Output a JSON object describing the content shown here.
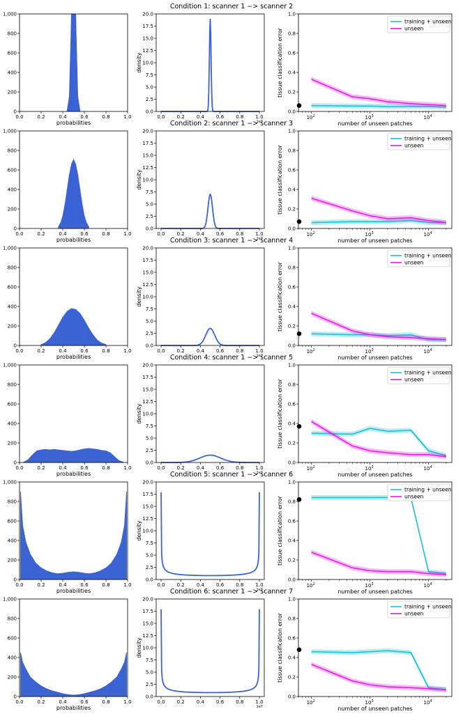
{
  "figure": {
    "common": {
      "hist_xlabel": "probabilities",
      "density_ylabel": "density",
      "density_exponent": "1e7",
      "error_xlabel": "number of unseen patches",
      "error_ylabel": "tissue classification error",
      "legend": [
        "training + unseen",
        "unseen"
      ],
      "colors": {
        "hist": "#3b63d4",
        "density": "#3b63d4",
        "training_unseen": "#17becf",
        "unseen": "#e619e6",
        "dot": "#000000"
      }
    }
  },
  "chart_data": [
    {
      "condition": 1,
      "title": "Condition 1: scanner 1 −> scanner 2",
      "histogram": {
        "type": "bar",
        "xlim": [
          0,
          1
        ],
        "ylim": [
          0,
          1000
        ],
        "xticks": [
          "0.0",
          "0.2",
          "0.4",
          "0.6",
          "0.8",
          "1.0"
        ],
        "yticks": [
          "0",
          "200",
          "400",
          "600",
          "800",
          "1,000"
        ],
        "x": [
          0.44,
          0.46,
          0.48,
          0.5,
          0.52,
          0.54,
          0.56
        ],
        "values": [
          10,
          150,
          1000,
          1000,
          1000,
          150,
          10
        ]
      },
      "density": {
        "type": "line",
        "xlim": [
          0,
          1
        ],
        "ylim": [
          0,
          20
        ],
        "xticks": [
          "0.0",
          "0.2",
          "0.4",
          "0.6",
          "0.8",
          "1.0"
        ],
        "yticks": [
          "0.0",
          "2.5",
          "5.0",
          "7.5",
          "10.0",
          "12.5",
          "15.0",
          "17.5",
          "20.0"
        ],
        "peak_x": 0.5,
        "peak_y": 19.0
      },
      "error": {
        "type": "line",
        "xscale": "log",
        "xlim": [
          60,
          25000
        ],
        "ylim": [
          0,
          1
        ],
        "yticks": [
          "0.0",
          "0.2",
          "0.4",
          "0.6",
          "0.8",
          "1.0"
        ],
        "xticks": [
          "10^2",
          "10^3",
          "10^4"
        ],
        "dot": {
          "x": 60,
          "y": 0.06
        },
        "series": [
          {
            "name": "training + unseen",
            "x": [
              100,
              500,
              1000,
              2000,
              5000,
              10000,
              20000
            ],
            "y": [
              0.06,
              0.055,
              0.055,
              0.05,
              0.05,
              0.05,
              0.045
            ]
          },
          {
            "name": "unseen",
            "x": [
              100,
              500,
              1000,
              2000,
              5000,
              10000,
              20000
            ],
            "y": [
              0.33,
              0.15,
              0.13,
              0.1,
              0.08,
              0.07,
              0.06
            ]
          }
        ]
      }
    },
    {
      "condition": 2,
      "title": "Condition 2: scanner 1 −> scanner 3",
      "histogram": {
        "type": "bar",
        "xlim": [
          0,
          1
        ],
        "ylim": [
          0,
          1000
        ],
        "xticks": [
          "0.0",
          "0.2",
          "0.4",
          "0.6",
          "0.8",
          "1.0"
        ],
        "yticks": [
          "0",
          "200",
          "400",
          "600",
          "800",
          "1,000"
        ],
        "x": [
          0.36,
          0.38,
          0.4,
          0.42,
          0.44,
          0.46,
          0.48,
          0.5,
          0.52,
          0.54,
          0.56,
          0.58,
          0.6,
          0.62,
          0.64
        ],
        "values": [
          20,
          60,
          130,
          250,
          400,
          550,
          660,
          710,
          660,
          550,
          400,
          250,
          130,
          60,
          20
        ]
      },
      "density": {
        "type": "line",
        "xlim": [
          0,
          1
        ],
        "ylim": [
          0,
          20
        ],
        "xticks": [
          "0.0",
          "0.2",
          "0.4",
          "0.6",
          "0.8",
          "1.0"
        ],
        "yticks": [
          "0.0",
          "2.5",
          "5.0",
          "7.5",
          "10.0",
          "12.5",
          "15.0",
          "17.5",
          "20.0"
        ],
        "peak_x": 0.5,
        "peak_y": 7.0
      },
      "error": {
        "type": "line",
        "xscale": "log",
        "xlim": [
          60,
          25000
        ],
        "ylim": [
          0,
          1
        ],
        "yticks": [
          "0.0",
          "0.2",
          "0.4",
          "0.6",
          "0.8",
          "1.0"
        ],
        "xticks": [
          "10^2",
          "10^3",
          "10^4"
        ],
        "dot": {
          "x": 60,
          "y": 0.07
        },
        "series": [
          {
            "name": "training + unseen",
            "x": [
              100,
              500,
              1000,
              2000,
              5000,
              10000,
              20000
            ],
            "y": [
              0.06,
              0.07,
              0.07,
              0.07,
              0.08,
              0.06,
              0.06
            ]
          },
          {
            "name": "unseen",
            "x": [
              100,
              500,
              1000,
              2000,
              5000,
              10000,
              20000
            ],
            "y": [
              0.31,
              0.18,
              0.13,
              0.1,
              0.11,
              0.08,
              0.06
            ]
          }
        ]
      }
    },
    {
      "condition": 3,
      "title": "Condition 3: scanner 1 −> scanner 4",
      "histogram": {
        "type": "bar",
        "xlim": [
          0,
          1
        ],
        "ylim": [
          0,
          1000
        ],
        "xticks": [
          "0.0",
          "0.2",
          "0.4",
          "0.6",
          "0.8",
          "1.0"
        ],
        "yticks": [
          "0",
          "200",
          "400",
          "600",
          "800",
          "1,000"
        ],
        "x": [
          0.2,
          0.24,
          0.28,
          0.32,
          0.36,
          0.4,
          0.44,
          0.48,
          0.52,
          0.56,
          0.6,
          0.64,
          0.68,
          0.72,
          0.76,
          0.8
        ],
        "values": [
          10,
          30,
          70,
          130,
          210,
          290,
          350,
          380,
          370,
          330,
          260,
          180,
          110,
          55,
          25,
          10
        ]
      },
      "density": {
        "type": "line",
        "xlim": [
          0,
          1
        ],
        "ylim": [
          0,
          20
        ],
        "xticks": [
          "0.0",
          "0.2",
          "0.4",
          "0.6",
          "0.8",
          "1.0"
        ],
        "yticks": [
          "0.0",
          "2.5",
          "5.0",
          "7.5",
          "10.0",
          "12.5",
          "15.0",
          "17.5",
          "20.0"
        ],
        "peak_x": 0.5,
        "peak_y": 3.5
      },
      "error": {
        "type": "line",
        "xscale": "log",
        "xlim": [
          60,
          25000
        ],
        "ylim": [
          0,
          1
        ],
        "yticks": [
          "0.0",
          "0.2",
          "0.4",
          "0.6",
          "0.8",
          "1.0"
        ],
        "xticks": [
          "10^2",
          "10^3",
          "10^4"
        ],
        "dot": {
          "x": 60,
          "y": 0.12
        },
        "series": [
          {
            "name": "training + unseen",
            "x": [
              100,
              500,
              1000,
              2000,
              5000,
              10000,
              20000
            ],
            "y": [
              0.12,
              0.11,
              0.11,
              0.1,
              0.11,
              0.06,
              0.06
            ]
          },
          {
            "name": "unseen",
            "x": [
              100,
              500,
              1000,
              2000,
              5000,
              10000,
              20000
            ],
            "y": [
              0.33,
              0.15,
              0.11,
              0.09,
              0.08,
              0.07,
              0.06
            ]
          }
        ]
      }
    },
    {
      "condition": 4,
      "title": "Condition 4: scanner 1 −> scanner 5",
      "histogram": {
        "type": "bar",
        "xlim": [
          0,
          1
        ],
        "ylim": [
          0,
          1000
        ],
        "xticks": [
          "0.0",
          "0.2",
          "0.4",
          "0.6",
          "0.8",
          "1.0"
        ],
        "yticks": [
          "0",
          "200",
          "400",
          "600",
          "800",
          "1,000"
        ],
        "x": [
          0.04,
          0.08,
          0.12,
          0.16,
          0.2,
          0.24,
          0.28,
          0.32,
          0.36,
          0.4,
          0.44,
          0.48,
          0.52,
          0.56,
          0.6,
          0.64,
          0.68,
          0.72,
          0.76,
          0.8,
          0.84,
          0.88,
          0.92,
          0.96
        ],
        "values": [
          5,
          30,
          80,
          120,
          130,
          135,
          130,
          135,
          130,
          125,
          120,
          115,
          120,
          130,
          140,
          145,
          140,
          135,
          125,
          120,
          100,
          60,
          20,
          5
        ]
      },
      "density": {
        "type": "line",
        "xlim": [
          0,
          1
        ],
        "ylim": [
          0,
          20
        ],
        "xticks": [
          "0.0",
          "0.2",
          "0.4",
          "0.6",
          "0.8",
          "1.0"
        ],
        "yticks": [
          "0.0",
          "2.5",
          "5.0",
          "7.5",
          "10.0",
          "12.5",
          "15.0",
          "17.5",
          "20.0"
        ],
        "peak_x": 0.5,
        "peak_y": 1.5
      },
      "error": {
        "type": "line",
        "xscale": "log",
        "xlim": [
          60,
          25000
        ],
        "ylim": [
          0,
          1
        ],
        "yticks": [
          "0.0",
          "0.2",
          "0.4",
          "0.6",
          "0.8",
          "1.0"
        ],
        "xticks": [
          "10^2",
          "10^3",
          "10^4"
        ],
        "dot": {
          "x": 60,
          "y": 0.37
        },
        "series": [
          {
            "name": "training + unseen",
            "x": [
              100,
              500,
              1000,
              2000,
              5000,
              10000,
              20000
            ],
            "y": [
              0.3,
              0.29,
              0.35,
              0.32,
              0.33,
              0.12,
              0.07
            ]
          },
          {
            "name": "unseen",
            "x": [
              100,
              500,
              1000,
              2000,
              5000,
              10000,
              20000
            ],
            "y": [
              0.42,
              0.17,
              0.12,
              0.1,
              0.08,
              0.08,
              0.06
            ]
          }
        ]
      }
    },
    {
      "condition": 5,
      "title": "Condition 5: scanner 1 −> scanner 6",
      "histogram": {
        "type": "bar",
        "xlim": [
          0,
          1
        ],
        "ylim": [
          0,
          1000
        ],
        "xticks": [
          "0.0",
          "0.2",
          "0.4",
          "0.6",
          "0.8",
          "1.0"
        ],
        "yticks": [
          "0",
          "200",
          "400",
          "600",
          "800",
          "1,000"
        ],
        "x": [
          0.01,
          0.03,
          0.06,
          0.1,
          0.15,
          0.2,
          0.25,
          0.3,
          0.35,
          0.4,
          0.45,
          0.5,
          0.55,
          0.6,
          0.65,
          0.7,
          0.75,
          0.8,
          0.85,
          0.9,
          0.94,
          0.97,
          0.99
        ],
        "values": [
          900,
          550,
          380,
          260,
          170,
          120,
          90,
          70,
          60,
          65,
          75,
          80,
          75,
          65,
          60,
          70,
          90,
          120,
          170,
          260,
          380,
          550,
          900
        ]
      },
      "density": {
        "type": "line",
        "xlim": [
          0,
          1
        ],
        "ylim": [
          0,
          20
        ],
        "xticks": [
          "0.0",
          "0.2",
          "0.4",
          "0.6",
          "0.8",
          "1.0"
        ],
        "yticks": [
          "0.0",
          "2.5",
          "5.0",
          "7.5",
          "10.0",
          "12.5",
          "15.0",
          "17.5",
          "20.0"
        ],
        "shape": "u",
        "min_y": 0.8
      },
      "error": {
        "type": "line",
        "xscale": "log",
        "xlim": [
          60,
          25000
        ],
        "ylim": [
          0,
          1
        ],
        "yticks": [
          "0.0",
          "0.2",
          "0.4",
          "0.6",
          "0.8",
          "1.0"
        ],
        "xticks": [
          "10^2",
          "10^3",
          "10^4"
        ],
        "dot": {
          "x": 60,
          "y": 0.82
        },
        "series": [
          {
            "name": "training + unseen",
            "x": [
              100,
              500,
              1000,
              2000,
              5000,
              10000,
              20000
            ],
            "y": [
              0.84,
              0.84,
              0.84,
              0.84,
              0.84,
              0.08,
              0.06
            ]
          },
          {
            "name": "unseen",
            "x": [
              100,
              500,
              1000,
              2000,
              5000,
              10000,
              20000
            ],
            "y": [
              0.28,
              0.12,
              0.09,
              0.08,
              0.08,
              0.06,
              0.05
            ]
          }
        ]
      }
    },
    {
      "condition": 6,
      "title": "Condition 6: scanner 1 −> scanner 7",
      "histogram": {
        "type": "bar",
        "xlim": [
          0,
          1
        ],
        "ylim": [
          0,
          1000
        ],
        "xticks": [
          "0.0",
          "0.2",
          "0.4",
          "0.6",
          "0.8",
          "1.0"
        ],
        "yticks": [
          "0",
          "200",
          "400",
          "600",
          "800",
          "1,000"
        ],
        "x": [
          0.01,
          0.03,
          0.06,
          0.1,
          0.15,
          0.2,
          0.25,
          0.3,
          0.35,
          0.4,
          0.45,
          0.5,
          0.55,
          0.6,
          0.65,
          0.7,
          0.75,
          0.8,
          0.85,
          0.9,
          0.94,
          0.97,
          0.99
        ],
        "values": [
          450,
          350,
          280,
          200,
          150,
          110,
          80,
          60,
          45,
          30,
          20,
          15,
          20,
          30,
          45,
          60,
          80,
          110,
          150,
          200,
          280,
          350,
          450
        ]
      },
      "density": {
        "type": "line",
        "xlim": [
          0,
          1
        ],
        "ylim": [
          0,
          20
        ],
        "xticks": [
          "0.0",
          "0.2",
          "0.4",
          "0.6",
          "0.8",
          "1.0"
        ],
        "yticks": [
          "0.0",
          "2.5",
          "5.0",
          "7.5",
          "10.0",
          "12.5",
          "15.0",
          "17.5",
          "20.0"
        ],
        "shape": "u",
        "min_y": 0.8
      },
      "error": {
        "type": "line",
        "xscale": "log",
        "xlim": [
          60,
          25000
        ],
        "ylim": [
          0,
          1
        ],
        "yticks": [
          "0.0",
          "0.2",
          "0.4",
          "0.6",
          "0.8",
          "1.0"
        ],
        "xticks": [
          "10^2",
          "10^3",
          "10^4"
        ],
        "dot": {
          "x": 60,
          "y": 0.48
        },
        "series": [
          {
            "name": "training + unseen",
            "x": [
              100,
              500,
              1000,
              2000,
              5000,
              10000,
              20000
            ],
            "y": [
              0.46,
              0.45,
              0.46,
              0.47,
              0.45,
              0.09,
              0.07
            ]
          },
          {
            "name": "unseen",
            "x": [
              100,
              500,
              1000,
              2000,
              5000,
              10000,
              20000
            ],
            "y": [
              0.33,
              0.16,
              0.12,
              0.1,
              0.09,
              0.08,
              0.07
            ]
          }
        ]
      }
    }
  ]
}
